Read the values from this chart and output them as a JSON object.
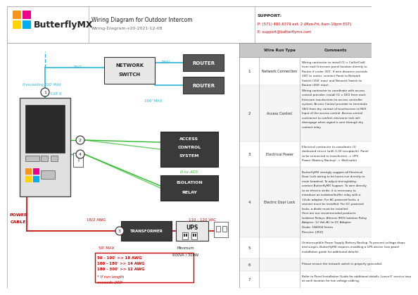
{
  "title": "Wiring Diagram for Outdoor Intercom",
  "subtitle": "Wiring-Diagram-v20-2021-12-08",
  "support_label": "SUPPORT:",
  "support_phone": "P: (571) 480.6379 ext. 2 (Mon-Fri, 6am-10pm EST)",
  "support_email": "E: support@butterflymx.com",
  "bg_color": "#ffffff",
  "cyan": "#29b6d5",
  "green": "#2db82d",
  "red": "#cc0000",
  "dark": "#222222",
  "gray": "#666666",
  "logo_orange": "#f7941d",
  "logo_pink": "#ec008c",
  "logo_yellow": "#ffd400",
  "logo_blue": "#00aeef",
  "box_dark": "#555555",
  "box_light": "#e8e8e8",
  "wire_run_rows": [
    {
      "num": "1",
      "type": "Network Connection",
      "comment": "Wiring contractor to install (1) x Cat5e/Cat6\nfrom each Intercom panel location directly to\nRouter if under 300'. If wire distance exceeds\n300' to router, connect Panel to Network\nSwitch (250' max) and Network Switch to\nRouter (250' max)."
    },
    {
      "num": "2",
      "type": "Access Control",
      "comment": "Wiring contractor to coordinate with access\ncontrol provider, install (1) x 18/2 from each\nIntercom touchscreen to access controller\nsystem. Access Control provider to terminate\n18/2 from dry contact of touchscreen to REX\nInput of the access control. Access control\ncontractor to confirm electronic lock will\ndisengage when signal is sent through dry\ncontact relay."
    },
    {
      "num": "3",
      "type": "Electrical Power",
      "comment": "Electrical contractor to coordinate (1)\ndedicated circuit (with 3-20 receptacle). Panel\nto be connected to transformer -> UPS\nPower (Battery Backup) -> Wall outlet"
    },
    {
      "num": "4",
      "type": "Electric Door Lock",
      "comment": "ButterflyMX strongly suggest all Electrical\nDoor Lock wiring to be home-run directly to\nmain headend. To adjust timing/delay,\ncontact ButterflyMX Support. To wire directly\nto an electric strike, it is necessary to\nintroduce an isolation/buffer relay with a\n12vdc adapter. For AC-powered locks, a\nresistor must be installed. For DC-powered\nlocks, a diode must be installed.\nHere are our recommended products:\nIsolation Relays: Altronix IR5S Isolation Relay\nAdapter: 12 Volt AC to DC Adapter\nDiode: 1N4004 Series\nResistor: [450]"
    },
    {
      "num": "5",
      "type": "",
      "comment": "Uninterruptible Power Supply Battery Backup. To prevent voltage drops\nand surges, ButterflyMX requires installing a UPS device (see panel\ninstallation guide for additional details)."
    },
    {
      "num": "6",
      "type": "",
      "comment": "Please ensure the network switch is properly grounded."
    },
    {
      "num": "7",
      "type": "",
      "comment": "Refer to Panel Installation Guide for additional details. Leave 6' service loop\nat each location for low voltage cabling."
    }
  ]
}
